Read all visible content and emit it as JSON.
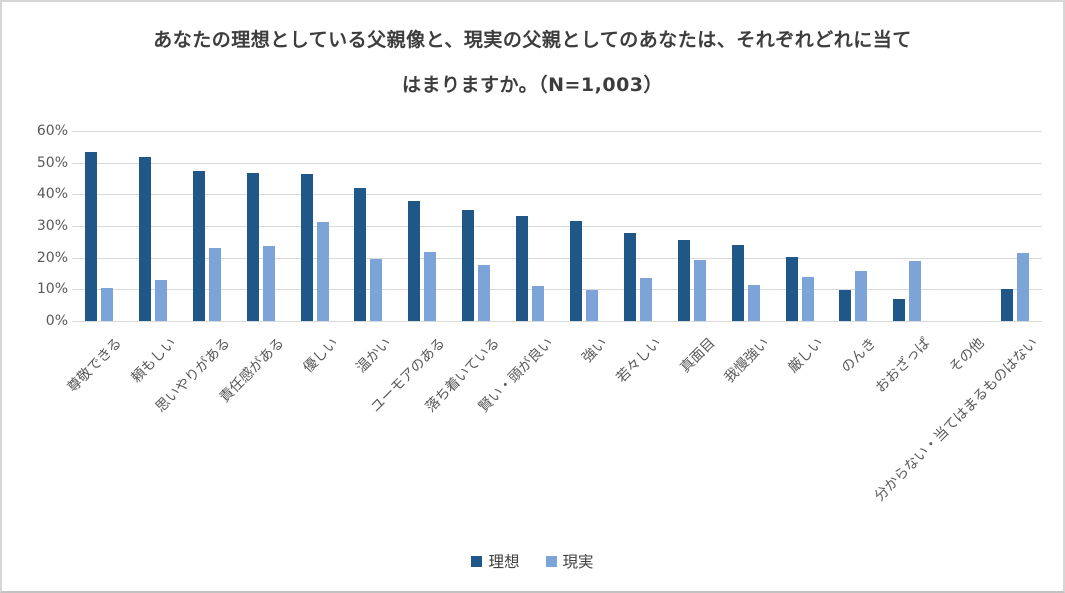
{
  "title": "あなたの理想としている父親像と、現実の父親としてのあなたは、それぞれどれに当てはまりますか。（N=1,003）",
  "title_lines": {
    "line1": "あなたの理想としている父親像と、現実の父親としてのあなたは、それぞれどれに当て",
    "line2": "はまりますか。（N=1,003）"
  },
  "colors": {
    "ideal_bar": "#1f5788",
    "actual_bar": "#7ca4d8",
    "gridline": "#d9d9d9",
    "axis_text": "#595959",
    "title_text": "#3d3d3d",
    "background": "#ffffff",
    "border": "#d6d6d6"
  },
  "chart_data": {
    "type": "bar",
    "title": "あなたの理想としている父親像と、現実の父親としてのあなたは、それぞれどれに当てはまりますか。（N=1,003）",
    "categories": [
      "尊敬できる",
      "頼もしい",
      "思いやりがある",
      "責任感がある",
      "優しい",
      "温かい",
      "ユーモアのある",
      "落ち着いている",
      "賢い・頭が良い",
      "強い",
      "若々しい",
      "真面目",
      "我慢強い",
      "厳しい",
      "のんき",
      "おおざっぱ",
      "その他",
      "分からない・当てはまるものはない"
    ],
    "series": [
      {
        "name": "理想",
        "color": "#1f5788",
        "values": [
          53.3,
          51.9,
          47.5,
          46.8,
          46.3,
          42.1,
          38.0,
          34.9,
          33.2,
          31.7,
          27.9,
          25.7,
          23.9,
          20.1,
          9.8,
          7.0,
          0,
          10.0
        ]
      },
      {
        "name": "現実",
        "color": "#7ca4d8",
        "values": [
          10.5,
          12.9,
          22.9,
          23.6,
          31.3,
          19.5,
          21.7,
          17.8,
          10.9,
          9.9,
          13.6,
          19.4,
          11.3,
          13.8,
          15.9,
          18.8,
          0,
          21.4
        ]
      }
    ],
    "xlabel": "",
    "ylabel": "",
    "ylim": [
      0,
      60
    ],
    "yticks": [
      "60%",
      "50%",
      "40%",
      "30%",
      "20%",
      "10%",
      "0%"
    ],
    "grid": true,
    "legend_position": "bottom"
  }
}
